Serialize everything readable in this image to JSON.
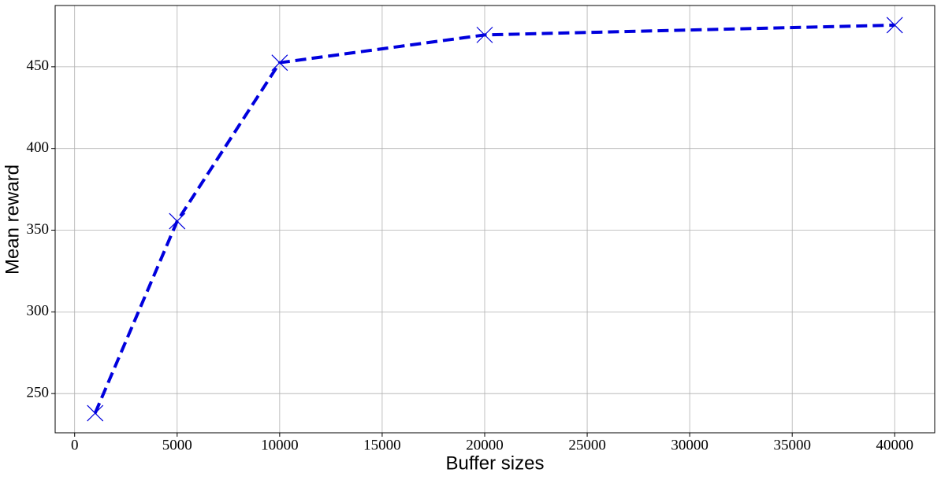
{
  "chart_data": {
    "type": "line",
    "x_label": "Buffer sizes",
    "y_label": "Mean reward",
    "x": [
      1000,
      5000,
      10000,
      20000,
      40000
    ],
    "series": [
      {
        "color": "#0000dd",
        "values": [
          238,
          355.5,
          452.5,
          469.5,
          475.5
        ]
      }
    ],
    "xlim": [
      -950,
      41950
    ],
    "xticks": [
      0,
      5000,
      10000,
      15000,
      20000,
      25000,
      30000,
      35000,
      40000
    ],
    "ylim": [
      226,
      487.5
    ],
    "yticks": [
      250,
      300,
      350,
      400,
      450
    ],
    "grid": true
  }
}
